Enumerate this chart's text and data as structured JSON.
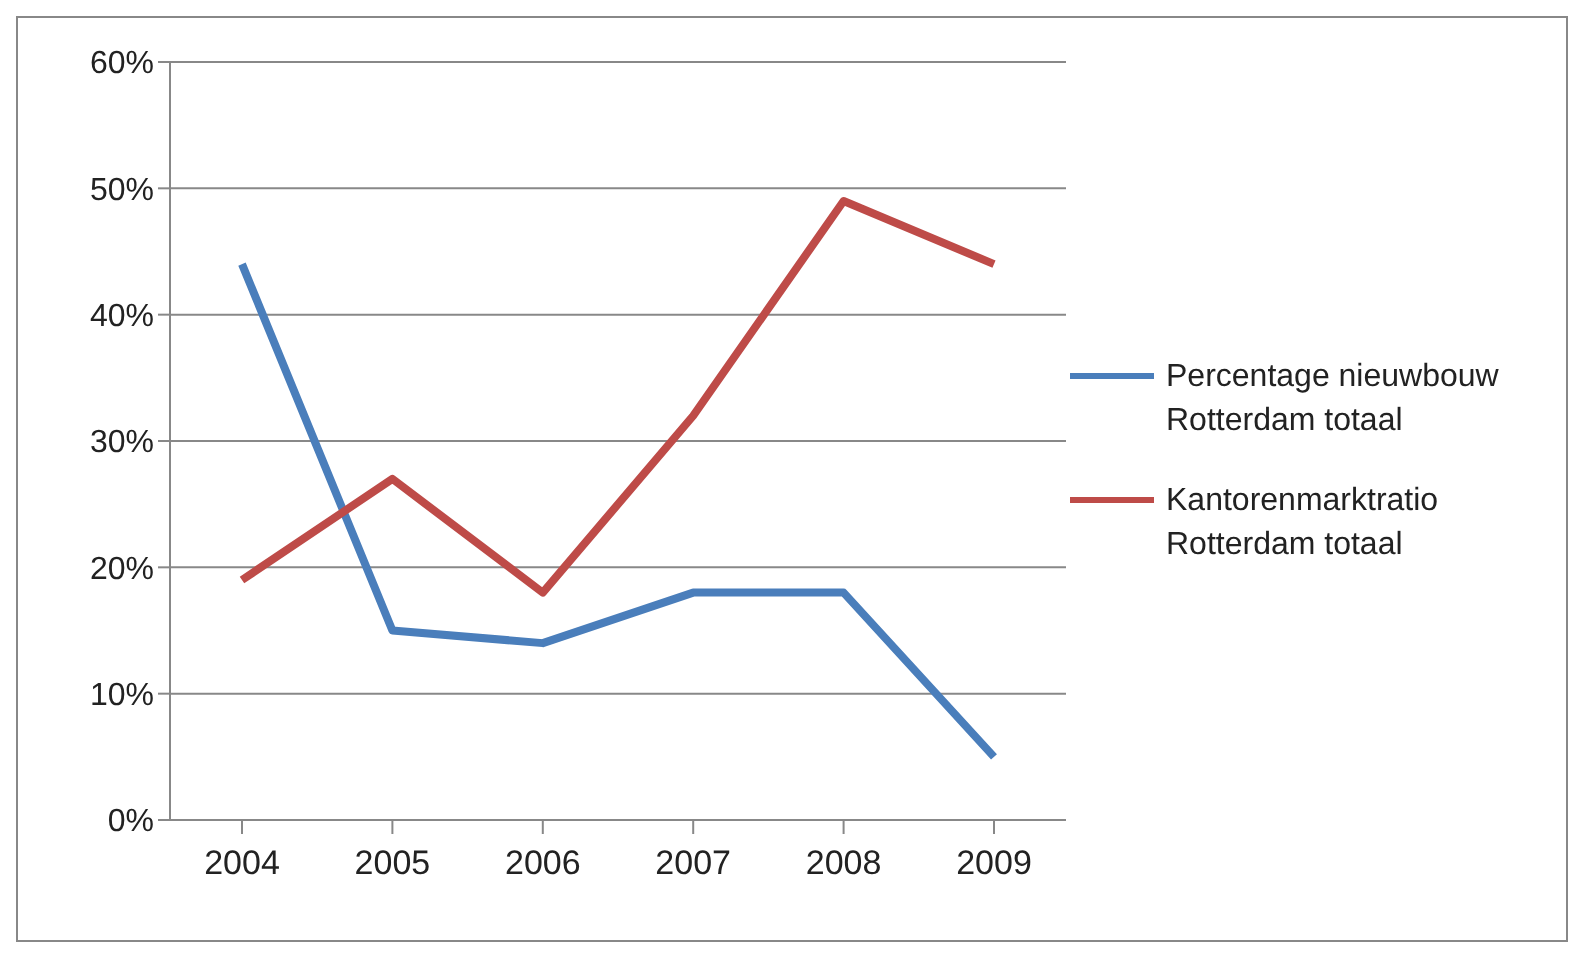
{
  "chart_data": {
    "type": "line",
    "categories": [
      "2004",
      "2005",
      "2006",
      "2007",
      "2008",
      "2009"
    ],
    "series": [
      {
        "name": "Percentage nieuwbouw Rotterdam totaal",
        "color": "#4a7ebb",
        "values": [
          44,
          15,
          14,
          18,
          18,
          5
        ]
      },
      {
        "name": "Kantorenmarktratio Rotterdam totaal",
        "color": "#be4b48",
        "values": [
          19,
          27,
          18,
          32,
          49,
          44
        ]
      }
    ],
    "ylim": [
      0,
      60
    ],
    "yticks": [
      {
        "value": 0,
        "label": "0%"
      },
      {
        "value": 10,
        "label": "10%"
      },
      {
        "value": 20,
        "label": "20%"
      },
      {
        "value": 30,
        "label": "30%"
      },
      {
        "value": 40,
        "label": "40%"
      },
      {
        "value": 50,
        "label": "50%"
      },
      {
        "value": 60,
        "label": "60%"
      }
    ],
    "grid": "y",
    "legend": "right",
    "marker": "none",
    "line_style": "solid"
  }
}
